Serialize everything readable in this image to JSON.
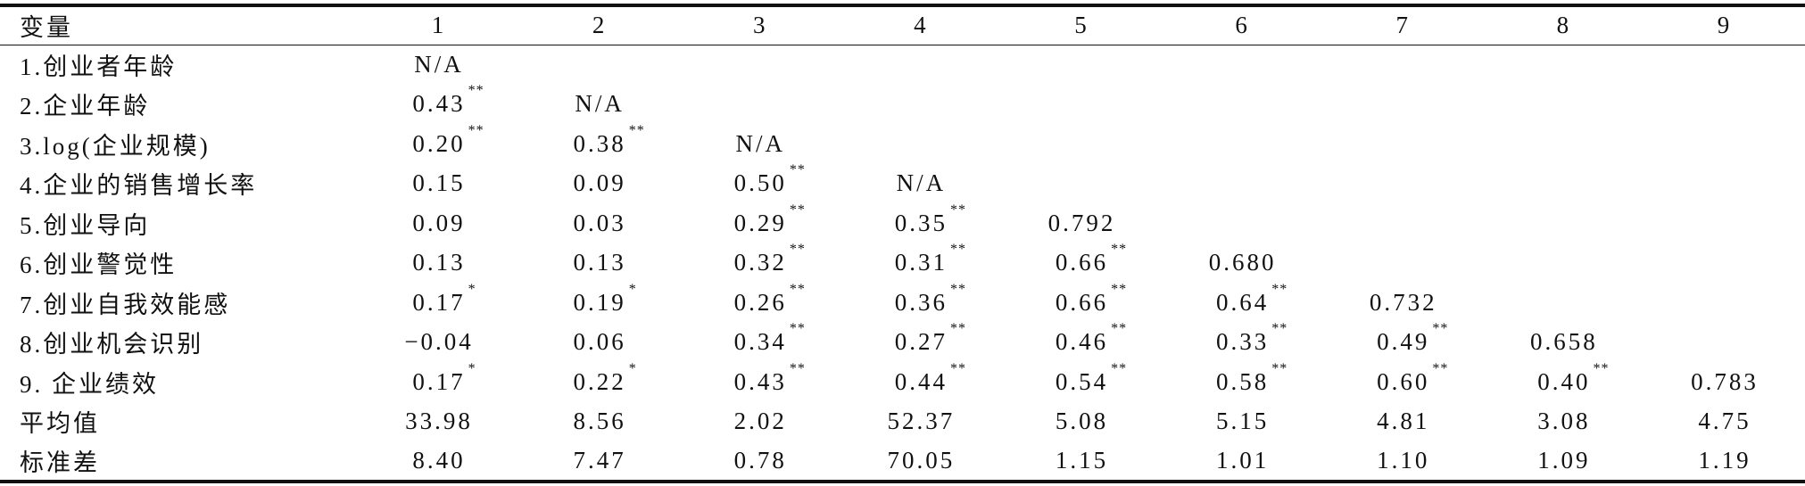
{
  "table": {
    "headers": [
      "变量",
      "1",
      "2",
      "3",
      "4",
      "5",
      "6",
      "7",
      "8",
      "9"
    ],
    "rows": [
      {
        "label": "1.创业者年龄",
        "cells": [
          {
            "value": "N/A"
          }
        ]
      },
      {
        "label": "2.企业年龄",
        "cells": [
          {
            "value": "0.43",
            "sig": "**"
          },
          {
            "value": "N/A"
          }
        ]
      },
      {
        "label": "3.log(企业规模)",
        "cells": [
          {
            "value": "0.20",
            "sig": "**"
          },
          {
            "value": "0.38",
            "sig": "**"
          },
          {
            "value": "N/A"
          }
        ]
      },
      {
        "label": "4.企业的销售增长率",
        "cells": [
          {
            "value": "0.15"
          },
          {
            "value": "0.09"
          },
          {
            "value": "0.50",
            "sig": "**"
          },
          {
            "value": "N/A"
          }
        ]
      },
      {
        "label": "5.创业导向",
        "cells": [
          {
            "value": "0.09"
          },
          {
            "value": "0.03"
          },
          {
            "value": "0.29",
            "sig": "**"
          },
          {
            "value": "0.35",
            "sig": "**"
          },
          {
            "value": "0.792"
          }
        ]
      },
      {
        "label": "6.创业警觉性",
        "cells": [
          {
            "value": "0.13"
          },
          {
            "value": "0.13"
          },
          {
            "value": "0.32",
            "sig": "**"
          },
          {
            "value": "0.31",
            "sig": "**"
          },
          {
            "value": "0.66",
            "sig": "**"
          },
          {
            "value": "0.680"
          }
        ]
      },
      {
        "label": "7.创业自我效能感",
        "cells": [
          {
            "value": "0.17",
            "sig": "*"
          },
          {
            "value": "0.19",
            "sig": "*"
          },
          {
            "value": "0.26",
            "sig": "**"
          },
          {
            "value": "0.36",
            "sig": "**"
          },
          {
            "value": "0.66",
            "sig": "**"
          },
          {
            "value": "0.64",
            "sig": "**"
          },
          {
            "value": "0.732"
          }
        ]
      },
      {
        "label": "8.创业机会识别",
        "cells": [
          {
            "value": "−0.04"
          },
          {
            "value": "0.06"
          },
          {
            "value": "0.34",
            "sig": "**"
          },
          {
            "value": "0.27",
            "sig": "**"
          },
          {
            "value": "0.46",
            "sig": "**"
          },
          {
            "value": "0.33",
            "sig": "**"
          },
          {
            "value": "0.49",
            "sig": "**"
          },
          {
            "value": "0.658"
          }
        ]
      },
      {
        "label": "9. 企业绩效",
        "cells": [
          {
            "value": "0.17",
            "sig": "*"
          },
          {
            "value": "0.22",
            "sig": "*"
          },
          {
            "value": "0.43",
            "sig": "**"
          },
          {
            "value": "0.44",
            "sig": "**"
          },
          {
            "value": "0.54",
            "sig": "**"
          },
          {
            "value": "0.58",
            "sig": "**"
          },
          {
            "value": "0.60",
            "sig": "**"
          },
          {
            "value": "0.40",
            "sig": "**"
          },
          {
            "value": "0.783"
          }
        ]
      },
      {
        "label": "平均值",
        "cells": [
          {
            "value": "33.98"
          },
          {
            "value": "8.56"
          },
          {
            "value": "2.02"
          },
          {
            "value": "52.37"
          },
          {
            "value": "5.08"
          },
          {
            "value": "5.15"
          },
          {
            "value": "4.81"
          },
          {
            "value": "3.08"
          },
          {
            "value": "4.75"
          }
        ]
      },
      {
        "label": "标准差",
        "cells": [
          {
            "value": "8.40"
          },
          {
            "value": "7.47"
          },
          {
            "value": "0.78"
          },
          {
            "value": "70.05"
          },
          {
            "value": "1.15"
          },
          {
            "value": "1.01"
          },
          {
            "value": "1.10"
          },
          {
            "value": "1.09"
          },
          {
            "value": "1.19"
          }
        ]
      }
    ]
  }
}
